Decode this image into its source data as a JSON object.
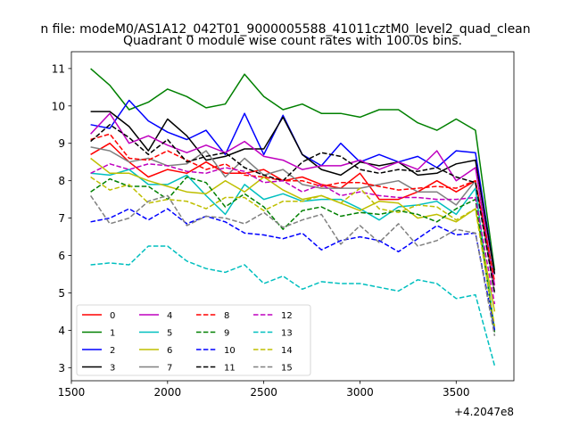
{
  "suptitle": "n file: modeM0/AS1A12_042T01_9000005588_41011cztM0_level2_quad_clean",
  "chart_data": {
    "type": "line",
    "title": "Quadrant 0 module wise count rates with 100.0s bins.",
    "xlabel": "",
    "ylabel": "",
    "x_offset_label": "+4.2047e8",
    "xlim": [
      1500,
      3800
    ],
    "ylim": [
      2.65,
      11.45
    ],
    "xticks": [
      1500,
      2000,
      2500,
      3000,
      3500
    ],
    "yticks": [
      3,
      4,
      5,
      6,
      7,
      8,
      9,
      10,
      11
    ],
    "legend_position": "lower-left",
    "x": [
      1600,
      1700,
      1800,
      1900,
      2000,
      2100,
      2200,
      2300,
      2400,
      2500,
      2600,
      2700,
      2800,
      2900,
      3000,
      3100,
      3200,
      3300,
      3400,
      3500,
      3600,
      3700
    ],
    "series": [
      {
        "name": "0",
        "color": "#ff0000",
        "dash": false,
        "values": [
          8.7,
          9.0,
          8.5,
          8.1,
          8.3,
          8.2,
          8.5,
          8.2,
          8.2,
          8.3,
          8.0,
          8.1,
          7.9,
          7.8,
          8.2,
          7.5,
          7.5,
          7.7,
          8.0,
          7.7,
          8.0,
          5.2
        ]
      },
      {
        "name": "1",
        "color": "#008000",
        "dash": false,
        "values": [
          11.0,
          10.55,
          9.9,
          10.1,
          10.45,
          10.25,
          9.95,
          10.05,
          10.85,
          10.25,
          9.9,
          10.05,
          9.8,
          9.8,
          9.7,
          9.9,
          9.9,
          9.55,
          9.35,
          9.65,
          9.35,
          5.6
        ]
      },
      {
        "name": "2",
        "color": "#0000ff",
        "dash": false,
        "values": [
          9.5,
          9.4,
          10.15,
          9.6,
          9.3,
          9.1,
          9.35,
          8.7,
          9.8,
          8.7,
          9.75,
          8.7,
          8.4,
          9.0,
          8.5,
          8.7,
          8.5,
          8.65,
          8.35,
          8.8,
          8.75,
          5.5
        ]
      },
      {
        "name": "3",
        "color": "#000000",
        "dash": false,
        "values": [
          9.85,
          9.85,
          9.45,
          8.8,
          9.65,
          9.2,
          8.55,
          8.65,
          8.85,
          8.85,
          9.7,
          8.7,
          8.3,
          8.15,
          8.5,
          8.4,
          8.5,
          8.15,
          8.2,
          8.45,
          8.55,
          5.5
        ]
      },
      {
        "name": "4",
        "color": "#bf00bf",
        "dash": false,
        "values": [
          9.25,
          9.8,
          9.0,
          9.2,
          8.95,
          8.75,
          8.95,
          8.75,
          9.05,
          8.65,
          8.55,
          8.3,
          8.4,
          8.4,
          8.55,
          8.3,
          8.5,
          8.3,
          8.8,
          8.0,
          8.35,
          5.2
        ]
      },
      {
        "name": "5",
        "color": "#00bfbf",
        "dash": false,
        "values": [
          8.2,
          8.15,
          8.3,
          7.9,
          7.9,
          8.15,
          7.6,
          7.1,
          7.9,
          7.5,
          7.65,
          7.45,
          7.5,
          7.5,
          7.25,
          6.95,
          7.3,
          7.35,
          7.45,
          7.1,
          7.8,
          4.0
        ]
      },
      {
        "name": "6",
        "color": "#bfbf00",
        "dash": false,
        "values": [
          8.6,
          8.2,
          8.2,
          8.0,
          7.85,
          7.7,
          7.65,
          8.0,
          7.7,
          8.1,
          7.75,
          7.5,
          7.6,
          7.4,
          7.2,
          7.45,
          7.4,
          7.0,
          7.1,
          6.9,
          7.25,
          4.5
        ]
      },
      {
        "name": "7",
        "color": "#808080",
        "dash": false,
        "values": [
          8.9,
          8.8,
          8.5,
          8.6,
          8.4,
          8.45,
          8.8,
          8.1,
          8.6,
          8.15,
          8.3,
          7.9,
          7.8,
          7.8,
          7.8,
          7.9,
          8.0,
          7.7,
          7.7,
          7.35,
          8.0,
          5.0
        ]
      },
      {
        "name": "8",
        "color": "#ff0000",
        "dash": true,
        "values": [
          9.1,
          9.25,
          8.6,
          8.55,
          8.8,
          8.55,
          8.3,
          8.45,
          8.15,
          8.1,
          8.0,
          8.0,
          7.85,
          7.95,
          7.95,
          7.85,
          7.75,
          7.8,
          7.85,
          7.8,
          8.0,
          5.3
        ]
      },
      {
        "name": "9",
        "color": "#008000",
        "dash": true,
        "values": [
          7.7,
          8.05,
          7.85,
          7.85,
          7.5,
          8.1,
          7.95,
          7.3,
          7.65,
          7.3,
          6.7,
          7.2,
          7.3,
          7.05,
          7.15,
          7.1,
          7.2,
          7.1,
          6.9,
          7.25,
          7.5,
          3.95
        ]
      },
      {
        "name": "10",
        "color": "#0000ff",
        "dash": true,
        "values": [
          6.9,
          7.0,
          7.25,
          6.95,
          7.25,
          6.85,
          7.05,
          6.9,
          6.6,
          6.55,
          6.45,
          6.6,
          6.15,
          6.4,
          6.5,
          6.4,
          6.1,
          6.45,
          6.8,
          6.55,
          6.6,
          4.0
        ]
      },
      {
        "name": "11",
        "color": "#000000",
        "dash": true,
        "values": [
          9.05,
          9.5,
          9.15,
          8.7,
          9.1,
          8.5,
          8.65,
          8.75,
          8.35,
          8.15,
          8.0,
          8.5,
          8.75,
          8.65,
          8.3,
          8.2,
          8.3,
          8.25,
          8.35,
          8.1,
          7.95,
          5.0
        ]
      },
      {
        "name": "12",
        "color": "#bf00bf",
        "dash": true,
        "values": [
          8.2,
          8.45,
          8.3,
          8.45,
          8.4,
          8.25,
          8.2,
          8.35,
          8.25,
          7.95,
          8.0,
          7.7,
          7.9,
          7.6,
          7.7,
          7.6,
          7.55,
          7.55,
          7.5,
          7.5,
          7.55,
          4.7
        ]
      },
      {
        "name": "13",
        "color": "#00bfbf",
        "dash": true,
        "values": [
          5.75,
          5.8,
          5.75,
          6.25,
          6.25,
          5.85,
          5.65,
          5.55,
          5.75,
          5.25,
          5.45,
          5.1,
          5.3,
          5.25,
          5.25,
          5.15,
          5.05,
          5.35,
          5.25,
          4.85,
          4.95,
          3.05
        ]
      },
      {
        "name": "14",
        "color": "#bfbf00",
        "dash": true,
        "values": [
          8.1,
          7.75,
          7.9,
          7.4,
          7.5,
          7.45,
          7.25,
          7.55,
          7.55,
          7.2,
          7.45,
          7.45,
          7.6,
          7.4,
          7.8,
          7.25,
          7.15,
          7.35,
          7.3,
          6.95,
          7.25,
          4.1
        ]
      },
      {
        "name": "15",
        "color": "#808080",
        "dash": true,
        "values": [
          7.6,
          6.85,
          7.0,
          7.45,
          7.6,
          6.8,
          7.05,
          7.0,
          6.85,
          7.15,
          6.75,
          6.95,
          7.1,
          6.3,
          6.8,
          6.35,
          6.85,
          6.25,
          6.4,
          6.7,
          6.6,
          3.85
        ]
      }
    ]
  }
}
